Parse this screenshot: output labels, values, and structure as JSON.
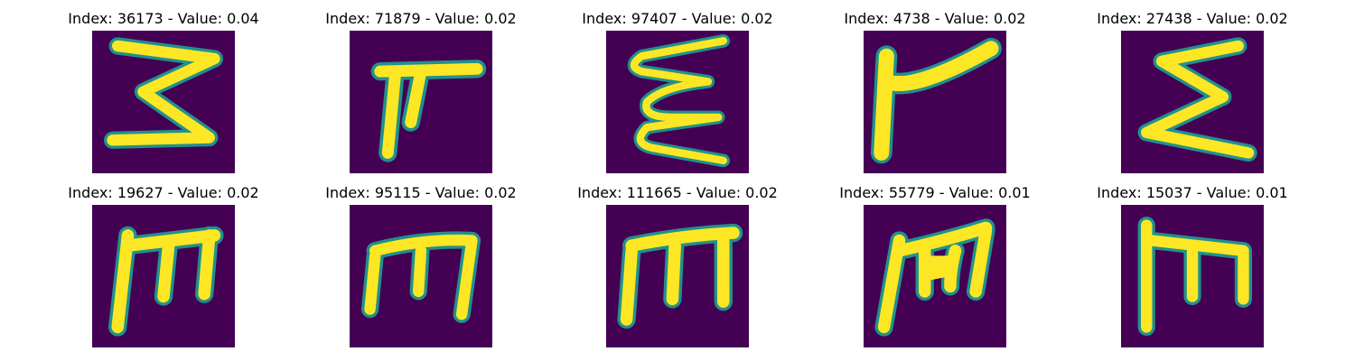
{
  "colors": {
    "background": "#440154",
    "stroke_core": "#fde725",
    "stroke_edge": "#21918c",
    "page": "#ffffff"
  },
  "panels": [
    {
      "title": "Index: 36173 - Value: 0.04",
      "glyph": "three-like"
    },
    {
      "title": "Index: 71879 - Value: 0.02",
      "glyph": "pi-like"
    },
    {
      "title": "Index: 97407 - Value: 0.02",
      "glyph": "wavy-e"
    },
    {
      "title": "Index: 4738 - Value: 0.02",
      "glyph": "flag-like"
    },
    {
      "title": "Index: 27438 - Value: 0.02",
      "glyph": "sigma-like"
    },
    {
      "title": "Index: 19627 - Value: 0.02",
      "glyph": "m-like"
    },
    {
      "title": "Index: 95115 - Value: 0.02",
      "glyph": "m-like"
    },
    {
      "title": "Index: 111665 - Value: 0.02",
      "glyph": "m-like"
    },
    {
      "title": "Index: 55779 - Value: 0.01",
      "glyph": "m-like"
    },
    {
      "title": "Index: 15037 - Value: 0.01",
      "glyph": "m-like"
    }
  ]
}
